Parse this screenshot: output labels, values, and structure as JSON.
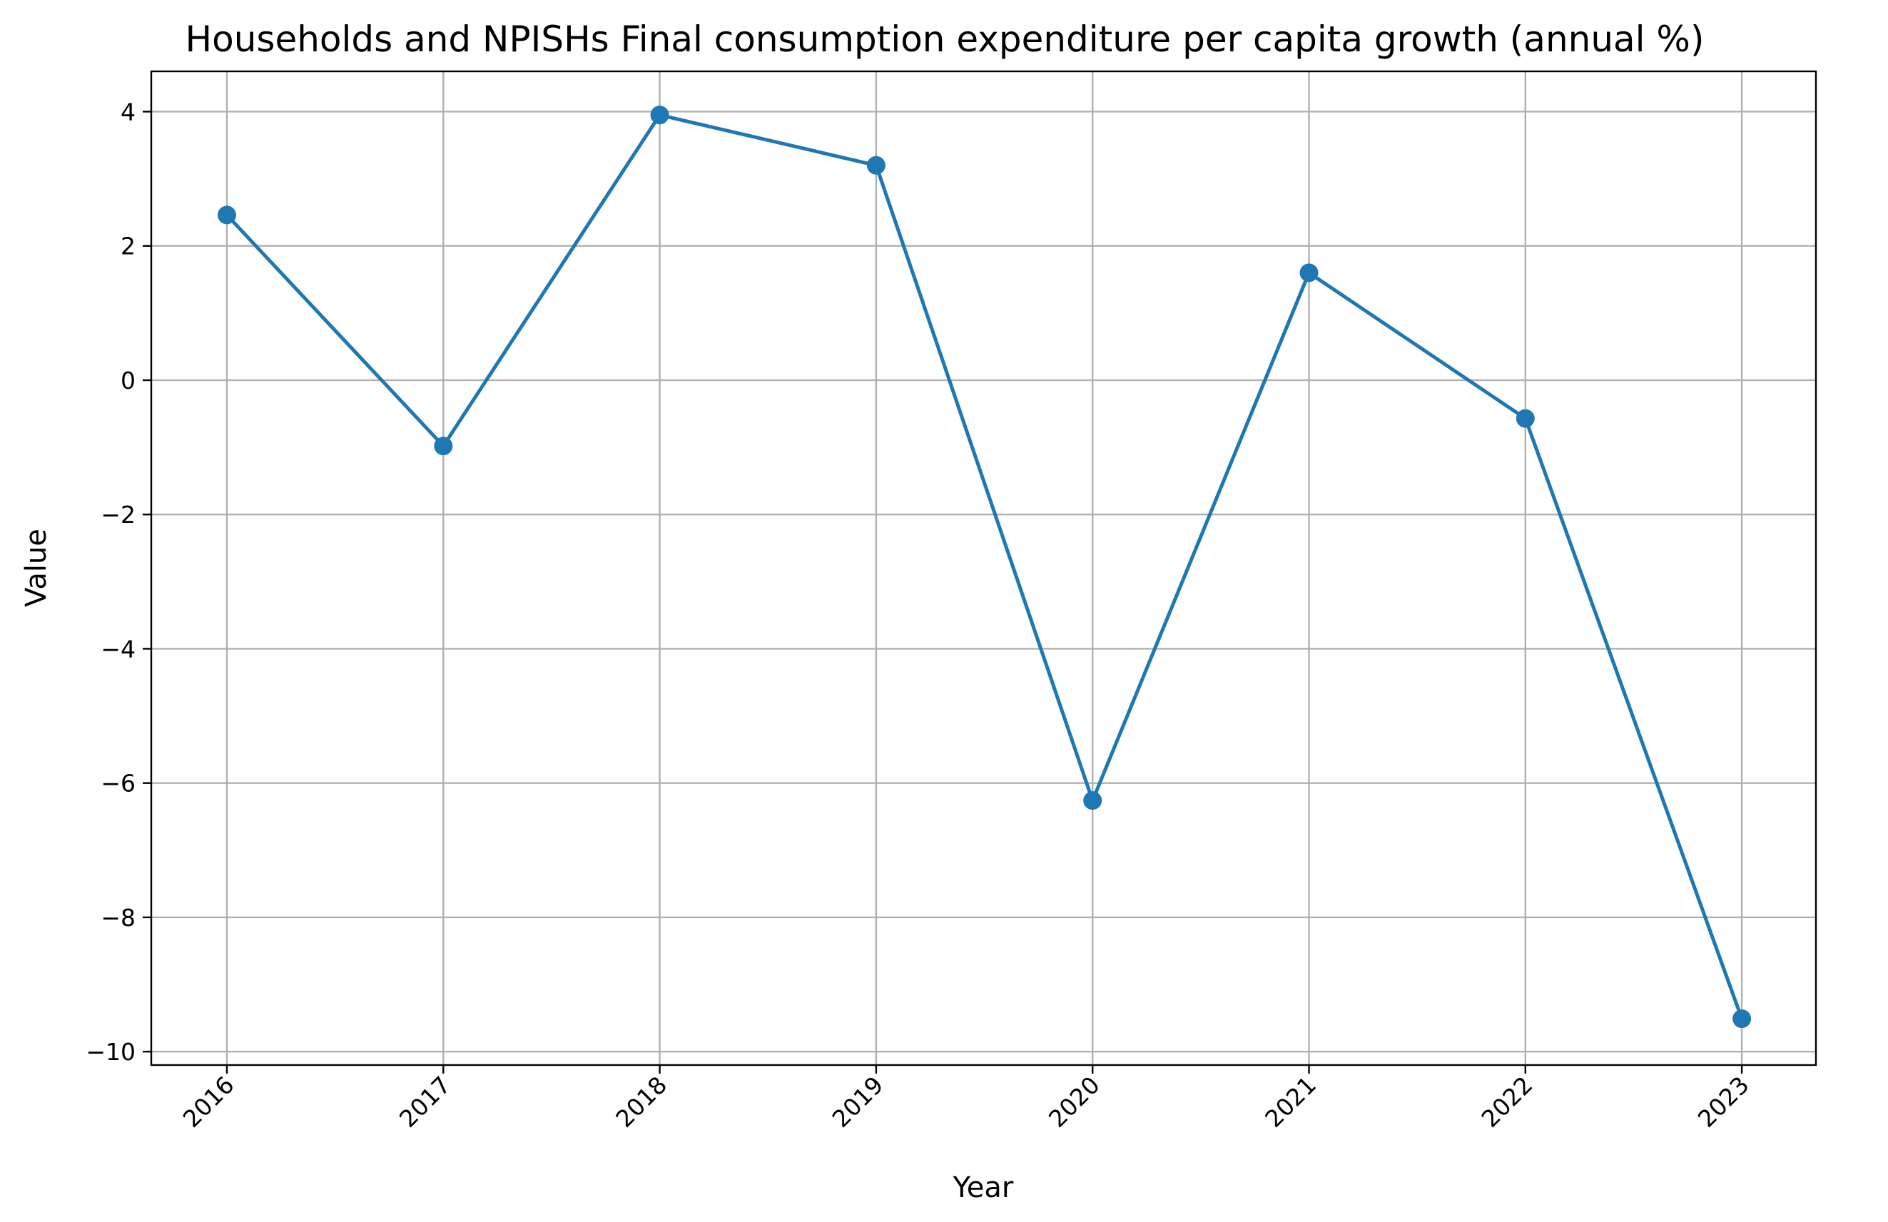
{
  "chart_data": {
    "type": "line",
    "title": "Households and NPISHs Final consumption expenditure per capita growth (annual %)",
    "xlabel": "Year",
    "ylabel": "Value",
    "x": [
      "2016",
      "2017",
      "2018",
      "2019",
      "2020",
      "2021",
      "2022",
      "2023"
    ],
    "series": [
      {
        "values": [
          2.46,
          -0.98,
          3.95,
          3.2,
          -6.26,
          1.6,
          -0.57,
          -9.51
        ]
      }
    ],
    "ylim": [
      -10.2,
      4.6
    ],
    "yticks": [
      4,
      2,
      0,
      -2,
      -4,
      -6,
      -8,
      -10
    ],
    "ytick_labels": [
      "4",
      "2",
      "0",
      "−2",
      "−4",
      "−6",
      "−8",
      "−10"
    ],
    "grid": true,
    "legend": "none",
    "colors": {
      "line": "#1f77b4",
      "grid": "#b0b0b0"
    }
  }
}
